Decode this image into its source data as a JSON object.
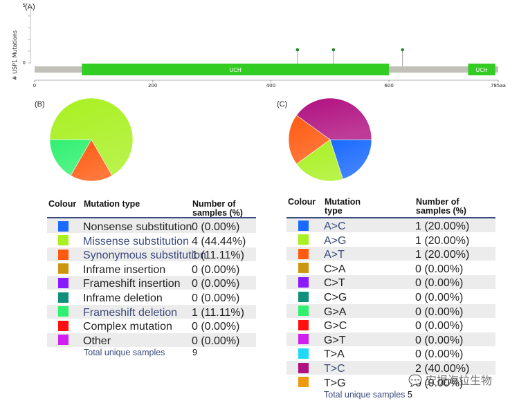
{
  "panelA": {
    "label": "(A)",
    "ylabel": "# USP1 Mutations",
    "y_ticks": [
      "5",
      "0"
    ],
    "x_ticks": [
      "0",
      "200",
      "400",
      "600",
      "785aa"
    ],
    "domains": [
      {
        "name": "UCH",
        "start": 80,
        "end": 600
      },
      {
        "name": "UCH",
        "start": 734,
        "end": 780
      }
    ],
    "protein_length": 785,
    "mutation_positions": [
      445,
      506,
      623
    ],
    "colors": {
      "domain": "#33cc22",
      "backbone": "#c0c0b8",
      "lollipop": "#228822"
    }
  },
  "panelB": {
    "label": "(B)",
    "headers": {
      "colour": "Colour",
      "type": "Mutation type",
      "count": "Number of samples (%)"
    },
    "rows": [
      {
        "color": "#1a6aff",
        "label": "Nonsense substitution",
        "value": "0 (0.00%)",
        "link": false
      },
      {
        "color": "#a8f020",
        "label": "Missense substitution",
        "value": "4 (44.44%)",
        "link": true
      },
      {
        "color": "#ff5a10",
        "label": "Synonymous substitution",
        "value": "1 (11.11%)",
        "link": true
      },
      {
        "color": "#cc9610",
        "label": "Inframe insertion",
        "value": "0 (0.00%)",
        "link": false
      },
      {
        "color": "#8a1aff",
        "label": "Frameshift insertion",
        "value": "0 (0.00%)",
        "link": false
      },
      {
        "color": "#10907a",
        "label": "Inframe deletion",
        "value": "0 (0.00%)",
        "link": false
      },
      {
        "color": "#30f070",
        "label": "Frameshift deletion",
        "value": "1 (11.11%)",
        "link": true
      },
      {
        "color": "#ff1010",
        "label": "Complex mutation",
        "value": "0 (0.00%)",
        "link": false
      },
      {
        "color": "#d020f0",
        "label": "Other",
        "value": "0 (0.00%)",
        "link": false
      }
    ],
    "total_label": "Total unique samples",
    "total_value": "9"
  },
  "panelC": {
    "label": "(C)",
    "headers": {
      "colour": "Colour",
      "type": "Mutation type",
      "count": "Number of samples (%)"
    },
    "rows": [
      {
        "color": "#1a6aff",
        "label": "A>C",
        "value": "1 (20.00%)",
        "link": true
      },
      {
        "color": "#a8f020",
        "label": "A>G",
        "value": "1 (20.00%)",
        "link": true
      },
      {
        "color": "#ff5a10",
        "label": "A>T",
        "value": "1 (20.00%)",
        "link": true
      },
      {
        "color": "#cc9610",
        "label": "C>A",
        "value": "0 (0.00%)",
        "link": false
      },
      {
        "color": "#8a1aff",
        "label": "C>T",
        "value": "0 (0.00%)",
        "link": false
      },
      {
        "color": "#10907a",
        "label": "C>G",
        "value": "0 (0.00%)",
        "link": false
      },
      {
        "color": "#30f070",
        "label": "G>A",
        "value": "0 (0.00%)",
        "link": false
      },
      {
        "color": "#ff1010",
        "label": "G>C",
        "value": "0 (0.00%)",
        "link": false
      },
      {
        "color": "#d020f0",
        "label": "G>T",
        "value": "0 (0.00%)",
        "link": false
      },
      {
        "color": "#20d8f8",
        "label": "T>A",
        "value": "0 (0.00%)",
        "link": false
      },
      {
        "color": "#b01080",
        "label": "T>C",
        "value": "2 (40.00%)",
        "link": true
      },
      {
        "color": "#ee9a10",
        "label": "T>G",
        "value": "0 (0.00%)",
        "link": false
      }
    ],
    "total_label": "Total unique samples",
    "total_value": "5"
  },
  "watermark": "安提海拉生物",
  "chart_data": [
    {
      "type": "scatter",
      "title": "",
      "ylabel": "# USP1 Mutations",
      "xlabel": "",
      "xlim": [
        0,
        785
      ],
      "ylim": [
        0,
        5
      ],
      "x": [
        445,
        506,
        623
      ],
      "y": [
        1,
        1,
        1
      ]
    },
    {
      "type": "pie",
      "title": "",
      "labels": [
        "Missense substitution",
        "Synonymous substitution",
        "Frameshift deletion"
      ],
      "values": [
        4,
        1,
        1
      ],
      "colors": [
        "#a8f020",
        "#ff5a10",
        "#30f070"
      ]
    },
    {
      "type": "pie",
      "title": "",
      "labels": [
        "A>C",
        "A>G",
        "A>T",
        "T>C"
      ],
      "values": [
        1,
        1,
        1,
        2
      ],
      "colors": [
        "#1a6aff",
        "#a8f020",
        "#ff5a10",
        "#b01080"
      ]
    }
  ]
}
